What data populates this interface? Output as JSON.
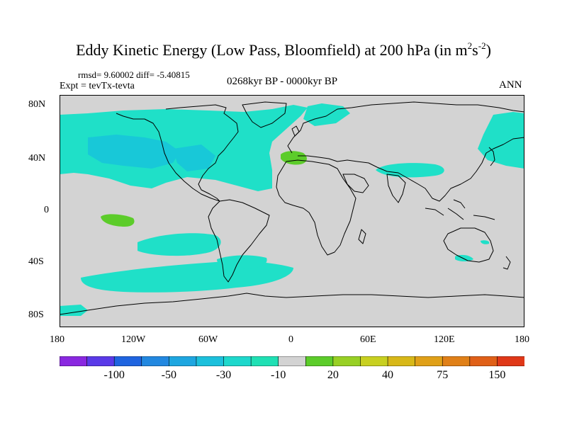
{
  "title": {
    "main": "Eddy Kinetic Energy (Low Pass, Bloomfield) at 200 hPa (in m",
    "sup1": "2",
    "mid": "s",
    "sup2": "-2",
    "end": ")"
  },
  "stats": "rmsd= 9.60002 diff= -5.40815",
  "experiment": "Expt = tevTx-tevta",
  "period": "0268kyr BP - 0000kyr BP",
  "season": "ANN",
  "y_ticks": [
    "80N",
    "40N",
    "0",
    "40S",
    "80S"
  ],
  "x_ticks": [
    "180",
    "120W",
    "60W",
    "0",
    "60E",
    "120E",
    "180"
  ],
  "colors": {
    "land_ocean_neutral": "#d3d3d3",
    "coastline": "#000000",
    "negative_10": "#1fe0c8",
    "negative_20": "#18c8d8",
    "positive_10": "#5ccc2a"
  },
  "colorbar": {
    "colors": [
      "#8a28e0",
      "#5a3ae8",
      "#1f64e0",
      "#2288e0",
      "#1ea6e0",
      "#1cc0dc",
      "#1ed8cc",
      "#1fe0b4",
      "#d3d3d3",
      "#5ccc2a",
      "#98d024",
      "#c8d020",
      "#d8b818",
      "#e0a018",
      "#e08018",
      "#e06018",
      "#e03818"
    ],
    "labels": [
      "-100",
      "-50",
      "-30",
      "-10",
      "20",
      "40",
      "75",
      "150"
    ]
  }
}
